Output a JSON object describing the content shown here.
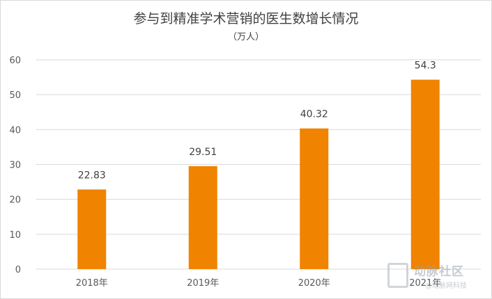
{
  "chart_data": {
    "type": "bar",
    "title": "参与到精准学术营销的医生数增长情况",
    "subtitle": "（万人）",
    "categories": [
      "2018年",
      "2019年",
      "2020年",
      "2021年"
    ],
    "values": [
      22.83,
      29.51,
      40.32,
      54.3
    ],
    "data_labels": [
      "22.83",
      "29.51",
      "40.32",
      "54.3"
    ],
    "ylim": [
      0,
      60
    ],
    "yticks": [
      0,
      10,
      20,
      30,
      40,
      50,
      60
    ],
    "grid": true,
    "legend": "none",
    "bar_color": "#F08300",
    "grid_color": "#D9D9D9"
  },
  "watermark": {
    "main": "动脉社区",
    "sub": "@动脉网科技"
  }
}
